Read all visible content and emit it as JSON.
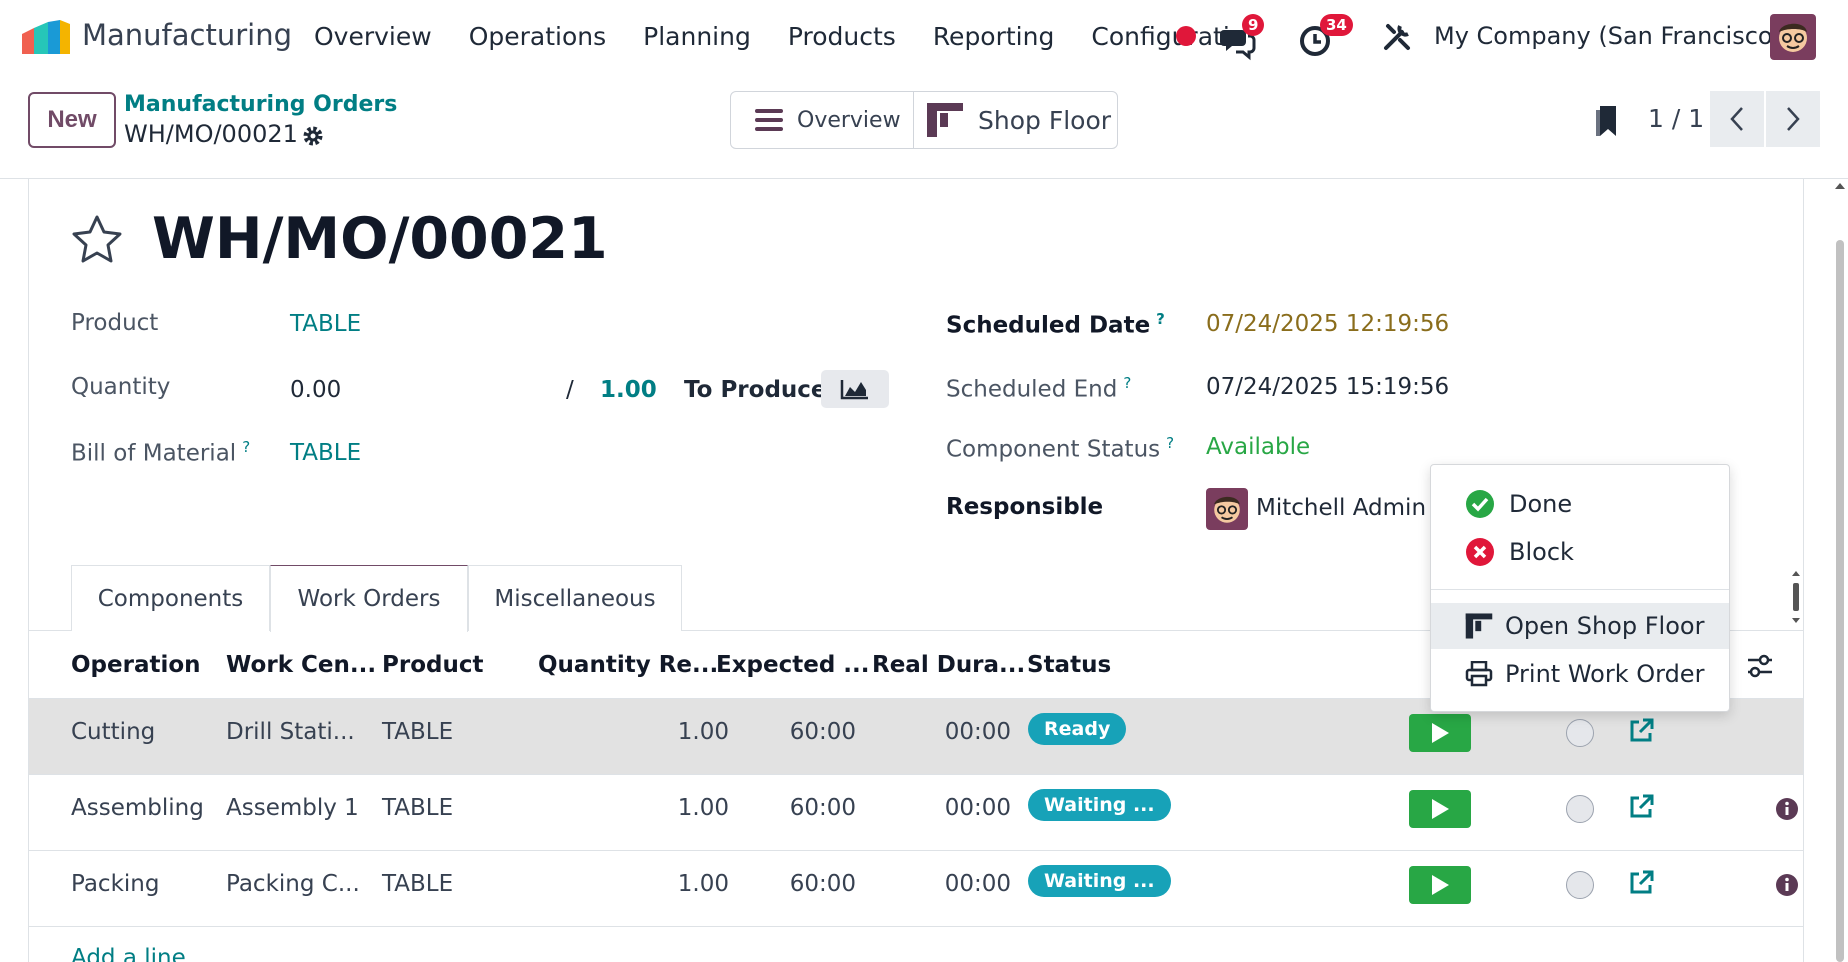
{
  "navbar": {
    "app_name": "Manufacturing",
    "menu": [
      "Overview",
      "Operations",
      "Planning",
      "Products",
      "Reporting",
      "Configuration"
    ],
    "messages_count": "9",
    "activities_count": "34",
    "company": "My Company (San Francisco)"
  },
  "control_panel": {
    "new_label": "New",
    "breadcrumb_parent": "Manufacturing Orders",
    "breadcrumb_current": "WH/MO/00021",
    "overview_label": "Overview",
    "shop_floor_label": "Shop Floor",
    "pager": "1 / 1"
  },
  "record": {
    "title": "WH/MO/00021",
    "product_label": "Product",
    "product_value": "TABLE",
    "quantity_label": "Quantity",
    "quantity_value": "0.00",
    "quantity_sep": "/",
    "quantity_target": "1.00",
    "to_produce_label": "To Produce",
    "bom_label": "Bill of Material",
    "bom_value": "TABLE",
    "scheduled_date_label": "Scheduled Date",
    "scheduled_date_value": "07/24/2025 12:19:56",
    "scheduled_end_label": "Scheduled End",
    "scheduled_end_value": "07/24/2025 15:19:56",
    "component_status_label": "Component Status",
    "component_status_value": "Available",
    "responsible_label": "Responsible",
    "responsible_value": "Mitchell Admin",
    "help_mark": "?"
  },
  "tabs": [
    "Components",
    "Work Orders",
    "Miscellaneous"
  ],
  "table": {
    "headers": [
      "Operation",
      "Work Cen...",
      "Product",
      "Quantity Re...",
      "Expected ...",
      "Real Dura...",
      "Status"
    ],
    "rows": [
      {
        "operation": "Cutting",
        "work_center": "Drill Stati...",
        "product": "TABLE",
        "qty": "1.00",
        "expected": "60:00",
        "real": "00:00",
        "status": "Ready"
      },
      {
        "operation": "Assembling",
        "work_center": "Assembly 1",
        "product": "TABLE",
        "qty": "1.00",
        "expected": "60:00",
        "real": "00:00",
        "status": "Waiting ..."
      },
      {
        "operation": "Packing",
        "work_center": "Packing C...",
        "product": "TABLE",
        "qty": "1.00",
        "expected": "60:00",
        "real": "00:00",
        "status": "Waiting ..."
      }
    ],
    "add_line": "Add a line"
  },
  "dropdown": {
    "items": [
      "Done",
      "Block",
      "Open Shop Floor",
      "Print Work Order"
    ]
  },
  "colors": {
    "brand": "#714b67",
    "link": "#017e84",
    "badge": "#e0173a",
    "success": "#28a745",
    "info": "#17a2b8"
  }
}
